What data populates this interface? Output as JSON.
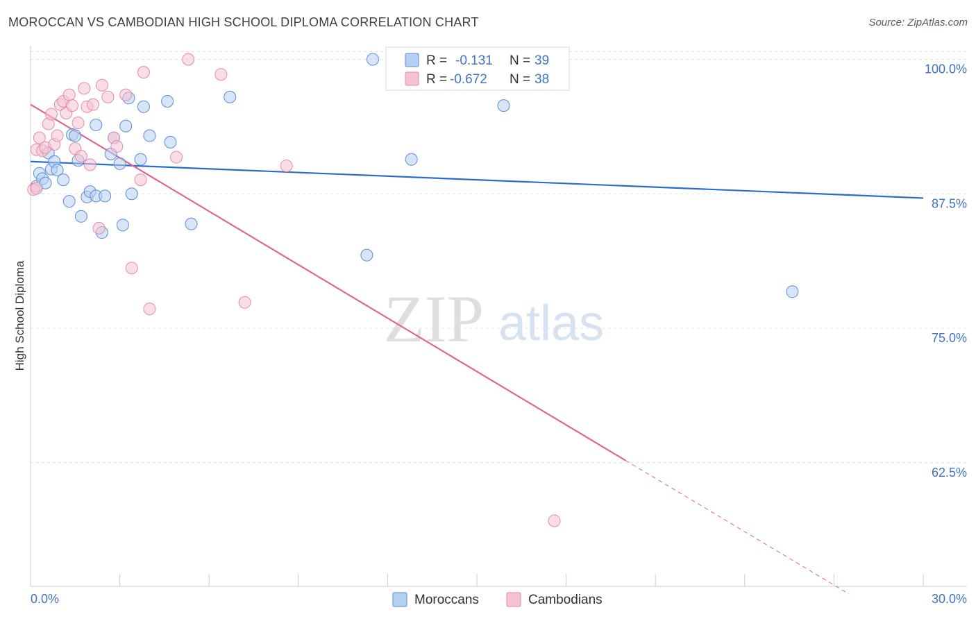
{
  "title": "MOROCCAN VS CAMBODIAN HIGH SCHOOL DIPLOMA CORRELATION CHART",
  "source": "Source: ZipAtlas.com",
  "watermark": {
    "zip": "ZIP",
    "atlas": "atlas"
  },
  "colors": {
    "blue": "#5b8ed6",
    "blue_fill": "#b7cff0",
    "blue_line": "#2a6dc9",
    "pink": "#e58aa8",
    "pink_fill": "#f5c2d3",
    "pink_line": "#e0648f",
    "grid": "#dde1e6",
    "axis": "#c8ccd2",
    "tick_text": "#3d74c4"
  },
  "legend": {
    "rows": [
      {
        "r_label": "R =",
        "r_value": "-0.131",
        "n_label": "N =",
        "n_value": "39",
        "series": "Moroccans"
      },
      {
        "r_label": "R =",
        "r_value": "-0.672",
        "n_label": "N =",
        "n_value": "38",
        "series": "Cambodians"
      }
    ]
  },
  "bottom_legend": [
    "Moroccans",
    "Cambodians"
  ],
  "chart_data": {
    "type": "scatter",
    "title": "MOROCCAN VS CAMBODIAN HIGH SCHOOL DIPLOMA CORRELATION CHART",
    "xlabel": "",
    "ylabel": "High School Diploma",
    "xlim": [
      0,
      30
    ],
    "ylim": [
      51,
      101
    ],
    "x_tick_labels": [
      "0.0%",
      "30.0%"
    ],
    "y_ticks": [
      62.5,
      75.0,
      87.5,
      100.0
    ],
    "y_tick_labels": [
      "62.5%",
      "75.0%",
      "87.5%",
      "100.0%"
    ],
    "grid": true,
    "series": [
      {
        "name": "Moroccans",
        "color": "blue",
        "points": [
          [
            0.2,
            88.2
          ],
          [
            0.3,
            89.4
          ],
          [
            0.4,
            88.9
          ],
          [
            0.5,
            88.5
          ],
          [
            0.6,
            91.3
          ],
          [
            0.7,
            89.8
          ],
          [
            0.8,
            90.5
          ],
          [
            0.9,
            89.7
          ],
          [
            1.1,
            88.8
          ],
          [
            1.3,
            86.8
          ],
          [
            1.4,
            93.0
          ],
          [
            1.5,
            92.9
          ],
          [
            1.6,
            90.6
          ],
          [
            1.7,
            85.4
          ],
          [
            1.9,
            87.2
          ],
          [
            2.0,
            87.7
          ],
          [
            2.2,
            87.3
          ],
          [
            2.2,
            93.9
          ],
          [
            2.4,
            83.9
          ],
          [
            2.5,
            87.3
          ],
          [
            2.7,
            91.2
          ],
          [
            2.8,
            92.7
          ],
          [
            3.0,
            90.3
          ],
          [
            3.1,
            84.6
          ],
          [
            3.2,
            93.8
          ],
          [
            3.3,
            96.4
          ],
          [
            3.4,
            87.5
          ],
          [
            3.7,
            90.7
          ],
          [
            3.8,
            95.6
          ],
          [
            4.0,
            92.9
          ],
          [
            4.6,
            96.1
          ],
          [
            4.7,
            92.3
          ],
          [
            5.4,
            84.7
          ],
          [
            6.7,
            96.5
          ],
          [
            11.5,
            100.0
          ],
          [
            11.3,
            81.8
          ],
          [
            12.8,
            90.7
          ],
          [
            15.9,
            95.7
          ],
          [
            25.6,
            78.4
          ]
        ]
      },
      {
        "name": "Cambodians",
        "color": "pink",
        "points": [
          [
            0.1,
            87.9
          ],
          [
            0.2,
            91.6
          ],
          [
            0.3,
            92.7
          ],
          [
            0.4,
            91.5
          ],
          [
            0.5,
            91.8
          ],
          [
            0.6,
            94.0
          ],
          [
            0.7,
            94.9
          ],
          [
            0.8,
            92.1
          ],
          [
            0.9,
            92.9
          ],
          [
            1.0,
            95.8
          ],
          [
            1.1,
            96.1
          ],
          [
            1.2,
            95.0
          ],
          [
            1.3,
            96.7
          ],
          [
            1.4,
            95.7
          ],
          [
            1.5,
            91.7
          ],
          [
            1.6,
            94.1
          ],
          [
            1.7,
            91.0
          ],
          [
            1.8,
            97.3
          ],
          [
            1.9,
            95.6
          ],
          [
            2.0,
            90.2
          ],
          [
            2.1,
            95.8
          ],
          [
            2.3,
            84.3
          ],
          [
            2.4,
            97.6
          ],
          [
            2.6,
            96.5
          ],
          [
            2.8,
            92.7
          ],
          [
            2.9,
            91.9
          ],
          [
            3.2,
            96.7
          ],
          [
            3.4,
            80.6
          ],
          [
            3.7,
            88.8
          ],
          [
            3.8,
            98.8
          ],
          [
            4.0,
            76.8
          ],
          [
            4.9,
            90.9
          ],
          [
            5.3,
            100.0
          ],
          [
            6.4,
            98.6
          ],
          [
            7.2,
            77.4
          ],
          [
            8.6,
            90.1
          ],
          [
            17.6,
            57.1
          ],
          [
            0.2,
            88.0
          ]
        ]
      }
    ],
    "trend_lines": [
      {
        "series": "Moroccans",
        "x_start": 0,
        "y_start": 90.5,
        "x_end": 30,
        "y_end": 87.1
      },
      {
        "series": "Cambodians",
        "x_start": 0,
        "y_start": 95.8,
        "x_end": 20,
        "y_end": 62.7,
        "dashed_to_x": 27.5,
        "dashed_to_y": 50.3
      }
    ]
  }
}
